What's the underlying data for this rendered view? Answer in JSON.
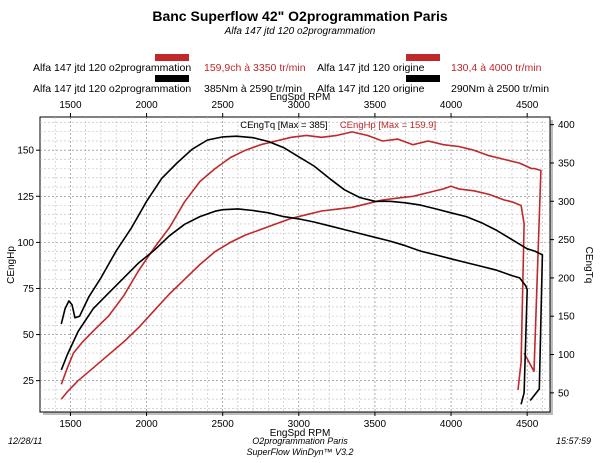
{
  "header": {
    "title": "Banc Superflow 42\" O2programmation Paris",
    "subtitle": "Alfa 147 jtd 120 o2programmation"
  },
  "legend": {
    "left_name_1": "Alfa 147 jtd 120 o2programmation",
    "left_value_1": "159,9ch à 3350 tr/min",
    "left_name_2": "Alfa 147 jtd 120 o2programmation",
    "left_value_2": "385Nm à 2590 tr/min",
    "right_name_1": "Alfa 147 jtd 120 origine",
    "right_value_1": "130,4 à 4000 tr/min",
    "right_name_2": "Alfa 147 jtd 120 origine",
    "right_value_2": "290Nm à 2500 tr/min",
    "colors": {
      "red": "#c0282a",
      "black": "#000000"
    }
  },
  "footer": {
    "date": "12/28/11",
    "company": "O2programmation Paris",
    "software": "SuperFlow WinDyn™ V3.2",
    "time": "15:57:59"
  },
  "chart_data": {
    "type": "line",
    "x_label_top": "EngSpd RPM",
    "x_label_bottom": "EngSpd RPM",
    "y_left_label": "CEngHp",
    "y_right_label": "CEngTq",
    "annotation_tq": "CEngTq [Max = 385]",
    "annotation_hp": "CEngHp [Max = 159.9]",
    "xlim": [
      1300,
      4650
    ],
    "x_ticks": [
      1500,
      2000,
      2500,
      3000,
      3500,
      4000,
      4500
    ],
    "y_left_lim": [
      8,
      168
    ],
    "y_left_ticks": [
      25,
      50,
      75,
      100,
      125,
      150
    ],
    "y_right_lim": [
      25,
      410
    ],
    "y_right_ticks": [
      50,
      100,
      150,
      200,
      250,
      300,
      350,
      400
    ],
    "series": [
      {
        "name": "Hp o2programmation",
        "axis": "left",
        "color": "#c0282a",
        "x": [
          1440,
          1480,
          1520,
          1580,
          1650,
          1750,
          1850,
          1950,
          2050,
          2150,
          2250,
          2350,
          2450,
          2550,
          2650,
          2750,
          2850,
          2950,
          3050,
          3150,
          3250,
          3350,
          3450,
          3550,
          3650,
          3750,
          3850,
          3950,
          4050,
          4150,
          4250,
          4350,
          4450,
          4530,
          4550,
          4590,
          4545,
          4480
        ],
        "y": [
          23,
          32,
          40,
          46,
          52,
          60,
          71,
          85,
          97,
          108,
          122,
          133,
          140,
          146,
          150,
          153,
          155,
          157,
          158,
          157,
          158,
          159.9,
          158,
          155,
          156,
          153,
          155,
          153,
          152,
          150,
          147,
          145,
          143,
          140,
          140,
          139,
          30,
          40
        ]
      },
      {
        "name": "Hp origine",
        "axis": "left",
        "color": "#c0282a",
        "x": [
          1440,
          1480,
          1550,
          1650,
          1750,
          1850,
          1950,
          2050,
          2150,
          2250,
          2350,
          2450,
          2550,
          2650,
          2750,
          2850,
          2950,
          3050,
          3150,
          3250,
          3350,
          3450,
          3550,
          3650,
          3750,
          3850,
          3950,
          4000,
          4050,
          4150,
          4250,
          4350,
          4400,
          4460,
          4480,
          4460,
          4440
        ],
        "y": [
          15,
          19,
          25,
          32,
          39,
          46,
          54,
          63,
          72,
          80,
          88,
          95,
          100,
          104,
          107,
          110,
          113,
          115,
          117,
          118,
          119,
          121,
          123,
          124,
          125,
          127,
          129,
          130.4,
          129,
          128,
          126,
          123,
          122,
          120,
          110,
          35,
          20
        ]
      },
      {
        "name": "Tq o2programmation",
        "axis": "right",
        "color": "#000000",
        "x": [
          1440,
          1465,
          1490,
          1510,
          1530,
          1560,
          1620,
          1700,
          1800,
          1900,
          2000,
          2100,
          2200,
          2300,
          2400,
          2500,
          2590,
          2700,
          2800,
          2900,
          3000,
          3100,
          3200,
          3300,
          3400,
          3500,
          3600,
          3700,
          3800,
          3900,
          4000,
          4100,
          4200,
          4300,
          4400,
          4500,
          4550,
          4600,
          4580,
          4520
        ],
        "y": [
          140,
          160,
          170,
          165,
          148,
          150,
          175,
          200,
          235,
          265,
          300,
          330,
          350,
          368,
          380,
          384,
          385,
          383,
          378,
          370,
          358,
          346,
          330,
          315,
          305,
          300,
          300,
          298,
          295,
          290,
          285,
          280,
          272,
          262,
          250,
          238,
          235,
          230,
          55,
          40
        ]
      },
      {
        "name": "Tq origine",
        "axis": "right",
        "color": "#000000",
        "x": [
          1440,
          1480,
          1550,
          1650,
          1750,
          1850,
          1950,
          2050,
          2150,
          2250,
          2350,
          2450,
          2500,
          2600,
          2700,
          2800,
          2900,
          3000,
          3100,
          3200,
          3300,
          3400,
          3500,
          3600,
          3700,
          3800,
          3900,
          4000,
          4100,
          4200,
          4300,
          4400,
          4450,
          4490,
          4500,
          4480,
          4460
        ],
        "y": [
          80,
          100,
          130,
          160,
          180,
          200,
          220,
          236,
          255,
          270,
          280,
          287,
          289,
          290,
          288,
          285,
          280,
          277,
          273,
          268,
          263,
          258,
          253,
          248,
          242,
          235,
          230,
          225,
          220,
          215,
          210,
          203,
          200,
          190,
          185,
          50,
          35
        ]
      }
    ]
  }
}
